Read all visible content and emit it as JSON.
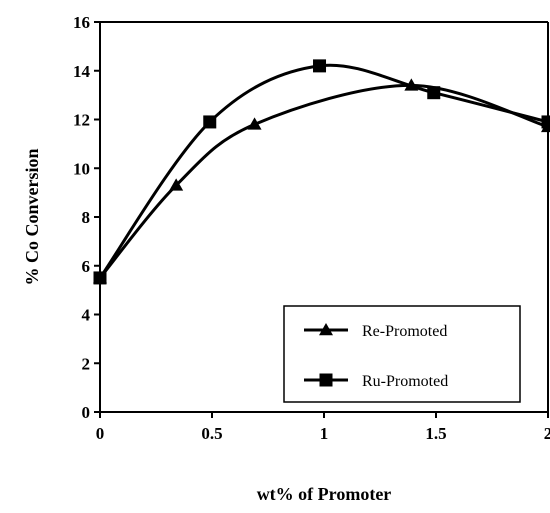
{
  "chart_data": {
    "type": "line",
    "xlabel": "wt% of Promoter",
    "ylabel": "% Co Conversion",
    "xlim": [
      0,
      2
    ],
    "ylim": [
      0,
      16
    ],
    "x_ticks": [
      0,
      0.5,
      1,
      1.5,
      2
    ],
    "x_tick_labels": [
      "0",
      "0.5",
      "1",
      "1.5",
      "2"
    ],
    "y_ticks": [
      0,
      2,
      4,
      6,
      8,
      10,
      12,
      14,
      16
    ],
    "y_tick_labels": [
      "0",
      "2",
      "4",
      "6",
      "8",
      "10",
      "12",
      "14",
      "16"
    ],
    "grid": false,
    "legend_position": "bottom-right",
    "series": [
      {
        "name": "Re-Promoted",
        "marker": "triangle",
        "color": "#000000",
        "x": [
          0,
          0.34,
          0.69,
          1.39,
          2.0
        ],
        "y": [
          5.5,
          9.3,
          11.8,
          13.4,
          11.7
        ]
      },
      {
        "name": "Ru-Promoted",
        "marker": "square",
        "color": "#000000",
        "x": [
          0,
          0.49,
          0.98,
          1.49,
          2.0
        ],
        "y": [
          5.5,
          11.9,
          14.2,
          13.1,
          11.9
        ]
      }
    ]
  }
}
